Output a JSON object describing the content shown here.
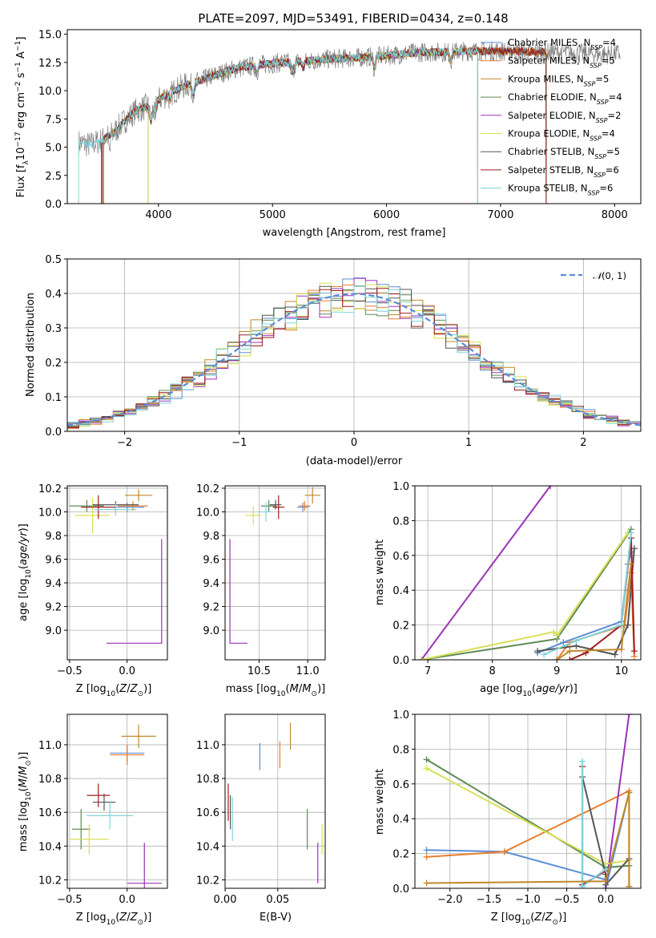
{
  "title": "PLATE=2097, MJD=53491, FIBERID=0434, z=0.148",
  "colors": {
    "Chabrier MILES": "#5b8dd6",
    "Salpeter MILES": "#e87e2e",
    "Kroupa MILES": "#c0882a",
    "Chabrier ELODIE": "#5f8a55",
    "Salpeter ELODIE": "#9a33b8",
    "Kroupa ELODIE": "#d8e055",
    "Chabrier STELIB": "#555555",
    "Salpeter STELIB": "#a01c1c",
    "Kroupa STELIB": "#7fd3d9",
    "data": "#808080",
    "normal": "#5b8dd6"
  },
  "chart_data": [
    {
      "id": "spectrum",
      "type": "line",
      "xlabel": "wavelength [Angstrom, rest frame]",
      "ylabel": "Flux [f",
      "xlim": [
        3200,
        8230
      ],
      "ylim": [
        0,
        15.4
      ],
      "xticks": [
        4000,
        5000,
        6000,
        7000,
        8000
      ],
      "yticks": [
        0.0,
        2.5,
        5.0,
        7.5,
        10.0,
        12.5,
        15.0
      ],
      "grid": false,
      "legend_position": "top-right",
      "legend": [
        {
          "name": "Chabrier MILES",
          "nssp": "4"
        },
        {
          "name": "Salpeter MILES",
          "nssp": "5"
        },
        {
          "name": "Kroupa MILES",
          "nssp": "5"
        },
        {
          "name": "Chabrier ELODIE",
          "nssp": "4"
        },
        {
          "name": "Salpeter ELODIE",
          "nssp": "2"
        },
        {
          "name": "Kroupa ELODIE",
          "nssp": "4"
        },
        {
          "name": "Chabrier STELIB",
          "nssp": "5"
        },
        {
          "name": "Salpeter STELIB",
          "nssp": "6"
        },
        {
          "name": "Kroupa STELIB",
          "nssp": "6"
        }
      ],
      "continuum": {
        "x": [
          3300,
          3400,
          3500,
          3600,
          3700,
          3800,
          3900,
          4000,
          4100,
          4200,
          4300,
          4400,
          4500,
          4700,
          4900,
          5100,
          5300,
          5500,
          5700,
          5900,
          6100,
          6300,
          6500,
          6700,
          6900,
          7100,
          7300,
          7500,
          7700,
          7900,
          8050
        ],
        "y": [
          5.4,
          5.2,
          5.6,
          6.2,
          7.3,
          8.2,
          8.6,
          9.2,
          9.8,
          10.3,
          10.7,
          11.0,
          11.4,
          12.0,
          12.3,
          12.5,
          12.6,
          12.8,
          12.9,
          13.0,
          13.2,
          13.4,
          13.4,
          13.5,
          13.5,
          13.5,
          13.4,
          13.4,
          13.3,
          13.2,
          13.3
        ]
      },
      "model_x_range": [
        3500,
        7400
      ],
      "data_x_range": [
        3300,
        8050
      ]
    },
    {
      "id": "residuals",
      "type": "histogram",
      "xlabel": "(data-model)/error",
      "ylabel": "Normed distribution",
      "xlim": [
        -2.5,
        2.5
      ],
      "ylim": [
        0,
        0.5
      ],
      "xticks": [
        -2,
        -1,
        0,
        1,
        2
      ],
      "yticks": [
        0.0,
        0.1,
        0.2,
        0.3,
        0.4,
        0.5
      ],
      "grid": true,
      "legend_position": "top-right",
      "legend_label": "N(0, 1)",
      "bin_width": 0.1
    },
    {
      "id": "age-vs-Z",
      "type": "errorbar",
      "xlabel": "Z [log10(Z/Z⊙)]",
      "ylabel": "age [log10(age/yr)]",
      "xlim": [
        -0.52,
        0.35
      ],
      "ylim": [
        8.75,
        10.22
      ],
      "xticks": [
        -0.5,
        0.0
      ],
      "yticks": [
        9.0,
        9.2,
        9.4,
        9.6,
        9.8,
        10.0,
        10.2
      ],
      "grid": true,
      "points": [
        {
          "name": "Chabrier MILES",
          "x": 0.0,
          "xerr": 0.15,
          "y": 10.04,
          "yerr": 0.04
        },
        {
          "name": "Salpeter MILES",
          "x": 0.05,
          "xerr": 0.13,
          "y": 10.05,
          "yerr": 0.04
        },
        {
          "name": "Chabrier ELODIE",
          "x": -0.35,
          "xerr": 0.15,
          "y": 10.05,
          "yerr": 0.05
        },
        {
          "name": "Salpeter ELODIE",
          "x": 0.3,
          "xerr": 0.0,
          "y": 8.89,
          "yerr": 0.0
        },
        {
          "name": "Kroupa ELODIE",
          "x": -0.3,
          "xerr": 0.15,
          "y": 9.97,
          "yerr": 0.15
        },
        {
          "name": "Chabrier STELIB",
          "x": -0.1,
          "xerr": 0.2,
          "y": 10.06,
          "yerr": 0.03
        },
        {
          "name": "Salpeter STELIB",
          "x": -0.25,
          "xerr": 0.15,
          "y": 10.04,
          "yerr": 0.1
        },
        {
          "name": "Kroupa STELIB",
          "x": -0.1,
          "xerr": 0.18,
          "y": 10.02,
          "yerr": 0.05
        },
        {
          "name": "Kroupa MILES",
          "x": 0.1,
          "xerr": 0.12,
          "y": 10.14,
          "yerr": 0.05
        }
      ]
    },
    {
      "id": "age-vs-mass",
      "type": "errorbar",
      "xlabel": "mass [log10(M/M⊙)]",
      "ylabel": "",
      "xlim": [
        10.15,
        11.18
      ],
      "ylim": [
        8.75,
        10.22
      ],
      "xticks": [
        10.5,
        11.0
      ],
      "yticks": [
        9.0,
        9.2,
        9.4,
        9.6,
        9.8,
        10.0,
        10.2
      ],
      "grid": true,
      "points": [
        {
          "name": "Chabrier MILES",
          "x": 10.95,
          "xerr": 0.06,
          "y": 10.04,
          "yerr": 0.04
        },
        {
          "name": "Salpeter MILES",
          "x": 10.97,
          "xerr": 0.06,
          "y": 10.05,
          "yerr": 0.04
        },
        {
          "name": "Chabrier ELODIE",
          "x": 10.6,
          "xerr": 0.08,
          "y": 10.05,
          "yerr": 0.05
        },
        {
          "name": "Salpeter ELODIE",
          "x": 10.2,
          "xerr": 0.0,
          "y": 8.89,
          "yerr": 0.0
        },
        {
          "name": "Kroupa ELODIE",
          "x": 10.44,
          "xerr": 0.08,
          "y": 9.97,
          "yerr": 0.08
        },
        {
          "name": "Chabrier STELIB",
          "x": 10.67,
          "xerr": 0.06,
          "y": 10.06,
          "yerr": 0.04
        },
        {
          "name": "Salpeter STELIB",
          "x": 10.7,
          "xerr": 0.06,
          "y": 10.04,
          "yerr": 0.1
        },
        {
          "name": "Kroupa STELIB",
          "x": 10.57,
          "xerr": 0.06,
          "y": 10.0,
          "yerr": 0.08
        },
        {
          "name": "Kroupa MILES",
          "x": 11.05,
          "xerr": 0.08,
          "y": 10.14,
          "yerr": 0.07
        }
      ]
    },
    {
      "id": "weight-vs-age",
      "type": "line",
      "xlabel": "age [log10(age/yr)]",
      "ylabel": "mass weight",
      "xlim": [
        6.8,
        10.3
      ],
      "ylim": [
        0,
        1.0
      ],
      "xticks": [
        7,
        8,
        9,
        10
      ],
      "yticks": [
        0.0,
        0.2,
        0.4,
        0.6,
        0.8,
        1.0
      ],
      "grid": true,
      "series": [
        {
          "name": "Chabrier MILES",
          "x": [
            8.7,
            9.1,
            10.0,
            10.1,
            10.15
          ],
          "y": [
            0.04,
            0.1,
            0.22,
            0.55,
            0.62
          ]
        },
        {
          "name": "Salpeter MILES",
          "x": [
            9.0,
            9.2,
            10.05,
            10.15,
            10.2
          ],
          "y": [
            0.0,
            0.1,
            0.2,
            0.5,
            0.02
          ]
        },
        {
          "name": "Chabrier ELODIE",
          "x": [
            6.9,
            9.0,
            10.15
          ],
          "y": [
            0.0,
            0.12,
            0.75
          ]
        },
        {
          "name": "Salpeter ELODIE",
          "x": [
            6.9,
            8.9
          ],
          "y": [
            0.0,
            1.0
          ]
        },
        {
          "name": "Kroupa ELODIE",
          "x": [
            6.9,
            8.95,
            9.0,
            10.1
          ],
          "y": [
            0.0,
            0.16,
            0.14,
            0.73
          ]
        },
        {
          "name": "Chabrier STELIB",
          "x": [
            8.7,
            9.3,
            9.9,
            10.1,
            10.2
          ],
          "y": [
            0.05,
            0.08,
            0.03,
            0.2,
            0.64
          ]
        },
        {
          "name": "Salpeter STELIB",
          "x": [
            9.2,
            9.45,
            10.0,
            10.15,
            10.2
          ],
          "y": [
            0.0,
            0.04,
            0.2,
            0.7,
            0.05
          ]
        },
        {
          "name": "Kroupa STELIB",
          "x": [
            8.8,
            9.3,
            10.0,
            10.15
          ],
          "y": [
            0.03,
            0.11,
            0.2,
            0.73
          ]
        },
        {
          "name": "Kroupa MILES",
          "x": [
            9.0,
            9.2,
            10.0,
            10.1,
            10.15
          ],
          "y": [
            0.0,
            0.05,
            0.06,
            0.4,
            0.55
          ]
        }
      ]
    },
    {
      "id": "mass-vs-Z",
      "type": "errorbar",
      "xlabel": "Z [log10(Z/Z⊙)]",
      "ylabel": "mass [log10(M/M⊙)]",
      "xlim": [
        -0.52,
        0.35
      ],
      "ylim": [
        10.15,
        11.18
      ],
      "xticks": [
        -0.5,
        0.0
      ],
      "yticks": [
        10.2,
        10.4,
        10.6,
        10.8,
        11.0
      ],
      "grid": true,
      "points": [
        {
          "name": "Chabrier MILES",
          "x": 0.0,
          "xerr": 0.15,
          "y": 10.95,
          "yerr": 0.05
        },
        {
          "name": "Salpeter MILES",
          "x": 0.0,
          "xerr": 0.15,
          "y": 10.94,
          "yerr": 0.06
        },
        {
          "name": "Chabrier ELODIE",
          "x": -0.4,
          "xerr": 0.08,
          "y": 10.5,
          "yerr": 0.12
        },
        {
          "name": "Salpeter ELODIE",
          "x": 0.15,
          "xerr": 0.15,
          "y": 10.18,
          "yerr": 0.24
        },
        {
          "name": "Kroupa ELODIE",
          "x": -0.33,
          "xerr": 0.17,
          "y": 10.44,
          "yerr": 0.09
        },
        {
          "name": "Chabrier STELIB",
          "x": -0.2,
          "xerr": 0.1,
          "y": 10.66,
          "yerr": 0.05
        },
        {
          "name": "Salpeter STELIB",
          "x": -0.25,
          "xerr": 0.1,
          "y": 10.7,
          "yerr": 0.07
        },
        {
          "name": "Kroupa STELIB",
          "x": -0.15,
          "xerr": 0.2,
          "y": 10.58,
          "yerr": 0.08
        },
        {
          "name": "Kroupa MILES",
          "x": 0.1,
          "xerr": 0.15,
          "y": 11.05,
          "yerr": 0.07
        }
      ]
    },
    {
      "id": "mass-vs-ebv",
      "type": "errorbar",
      "xlabel": "E(B-V)",
      "ylabel": "",
      "xlim": [
        0.0,
        0.095
      ],
      "ylim": [
        10.15,
        11.18
      ],
      "xticks": [
        0.0,
        0.05
      ],
      "xticklabels": [
        "0.00",
        "0.05"
      ],
      "yticks": [
        10.2,
        10.4,
        10.6,
        10.8,
        11.0
      ],
      "grid": true,
      "points": [
        {
          "name": "Chabrier MILES",
          "x": 0.033,
          "xerr": 0.0,
          "y": 10.93,
          "yerr": 0.08
        },
        {
          "name": "Salpeter MILES",
          "x": 0.052,
          "xerr": 0.0,
          "y": 10.94,
          "yerr": 0.08
        },
        {
          "name": "Chabrier ELODIE",
          "x": 0.078,
          "xerr": 0.0,
          "y": 10.5,
          "yerr": 0.12
        },
        {
          "name": "Salpeter ELODIE",
          "x": 0.088,
          "xerr": 0.0,
          "y": 10.3,
          "yerr": 0.12
        },
        {
          "name": "Kroupa ELODIE",
          "x": 0.092,
          "xerr": 0.0,
          "y": 10.44,
          "yerr": 0.09
        },
        {
          "name": "Chabrier STELIB",
          "x": 0.005,
          "xerr": 0.0,
          "y": 10.6,
          "yerr": 0.1
        },
        {
          "name": "Salpeter STELIB",
          "x": 0.003,
          "xerr": 0.0,
          "y": 10.66,
          "yerr": 0.11
        },
        {
          "name": "Kroupa STELIB",
          "x": 0.007,
          "xerr": 0.0,
          "y": 10.56,
          "yerr": 0.13
        },
        {
          "name": "Kroupa MILES",
          "x": 0.062,
          "xerr": 0.0,
          "y": 11.05,
          "yerr": 0.08
        }
      ]
    },
    {
      "id": "weight-vs-Z",
      "type": "line",
      "xlabel": "Z [log10(Z/Z⊙)]",
      "ylabel": "mass weight",
      "xlim": [
        -2.45,
        0.45
      ],
      "ylim": [
        0,
        1.0
      ],
      "xticks": [
        -2.0,
        -1.5,
        -1.0,
        -0.5,
        0.0
      ],
      "yticks": [
        0.0,
        0.2,
        0.4,
        0.6,
        0.8,
        1.0
      ],
      "grid": true,
      "series": [
        {
          "name": "Chabrier MILES",
          "x": [
            -2.3,
            -1.3,
            0.0,
            0.0,
            0.3
          ],
          "y": [
            0.22,
            0.21,
            0.05,
            0.0,
            0.55
          ]
        },
        {
          "name": "Salpeter MILES",
          "x": [
            -2.3,
            -1.3,
            0.3,
            0.3
          ],
          "y": [
            0.18,
            0.21,
            0.56,
            0.01
          ]
        },
        {
          "name": "Chabrier ELODIE",
          "x": [
            -2.3,
            0.0,
            0.3
          ],
          "y": [
            0.74,
            0.12,
            0.13
          ]
        },
        {
          "name": "Salpeter ELODIE",
          "x": [
            0.0,
            0.3
          ],
          "y": [
            0.0,
            1.0
          ]
        },
        {
          "name": "Kroupa ELODIE",
          "x": [
            -2.3,
            0.0,
            0.3
          ],
          "y": [
            0.69,
            0.14,
            0.16
          ]
        },
        {
          "name": "Chabrier STELIB",
          "x": [
            -0.3,
            0.0,
            0.0,
            0.3
          ],
          "y": [
            0.64,
            0.08,
            0.02,
            0.17
          ]
        },
        {
          "name": "Salpeter STELIB",
          "x": [
            -0.3,
            -0.3,
            0.0
          ],
          "y": [
            0.7,
            0.02,
            0.1
          ]
        },
        {
          "name": "Kroupa STELIB",
          "x": [
            -0.3,
            -0.3,
            0.0
          ],
          "y": [
            0.73,
            0.01,
            0.11
          ]
        },
        {
          "name": "Kroupa MILES",
          "x": [
            -2.3,
            0.0,
            0.3,
            0.3
          ],
          "y": [
            0.03,
            0.04,
            0.55,
            0.01
          ]
        }
      ]
    }
  ]
}
